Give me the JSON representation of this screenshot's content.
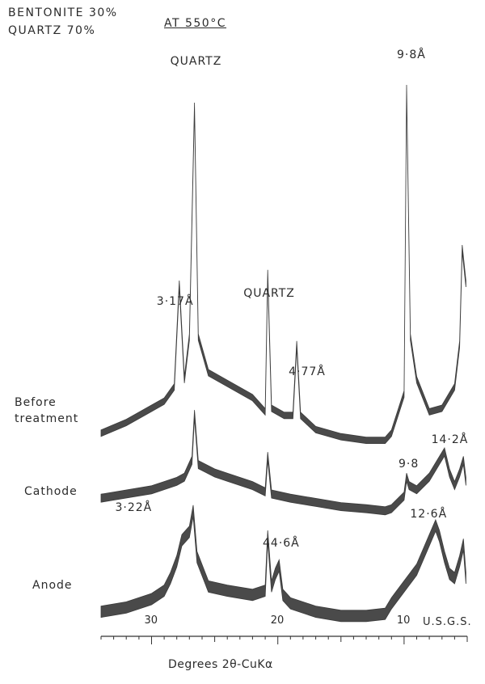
{
  "header": {
    "composition_line1": "BENTONITE 30%",
    "composition_line2": "QUARTZ 70%",
    "condition": "AT 550°C"
  },
  "credit": "U.S.G.S.",
  "chart_data": {
    "type": "line",
    "xlabel": "Degrees 2θ-CuKα",
    "x_ticks": [
      "30",
      "20",
      "10"
    ],
    "xlim": [
      34,
      5
    ],
    "series": [
      {
        "name": "Before treatment",
        "points": [
          [
            34,
            3
          ],
          [
            32,
            6
          ],
          [
            30,
            10
          ],
          [
            29,
            12
          ],
          [
            28.2,
            16
          ],
          [
            27.8,
            45
          ],
          [
            27.4,
            18
          ],
          [
            27,
            30
          ],
          [
            26.6,
            95
          ],
          [
            26.3,
            30
          ],
          [
            25.5,
            20
          ],
          [
            24,
            17
          ],
          [
            22,
            13
          ],
          [
            21,
            9
          ],
          [
            20.8,
            48
          ],
          [
            20.5,
            10
          ],
          [
            19.5,
            8
          ],
          [
            18.8,
            8
          ],
          [
            18.5,
            28
          ],
          [
            18.2,
            8
          ],
          [
            17,
            4
          ],
          [
            15,
            2
          ],
          [
            13,
            1
          ],
          [
            11.5,
            1
          ],
          [
            11,
            3
          ],
          [
            10,
            14
          ],
          [
            9.8,
            100
          ],
          [
            9.5,
            30
          ],
          [
            9,
            18
          ],
          [
            8,
            9
          ],
          [
            7,
            10
          ],
          [
            6,
            16
          ],
          [
            5.6,
            28
          ],
          [
            5.4,
            55
          ],
          [
            5.1,
            45
          ]
        ],
        "peak_labels": [
          {
            "text": "QUARTZ",
            "x": 26.6
          },
          {
            "text": "3·17Å",
            "x": 27.8
          },
          {
            "text": "QUARTZ",
            "x": 20.8
          },
          {
            "text": "4·77Å",
            "x": 18.5
          },
          {
            "text": "9·8Å",
            "x": 9.8
          }
        ]
      },
      {
        "name": "Cathode",
        "points": [
          [
            34,
            8
          ],
          [
            32,
            10
          ],
          [
            30,
            12
          ],
          [
            29,
            14
          ],
          [
            28,
            16
          ],
          [
            27.4,
            18
          ],
          [
            26.8,
            26
          ],
          [
            26.6,
            48
          ],
          [
            26.3,
            24
          ],
          [
            25,
            20
          ],
          [
            24,
            18
          ],
          [
            22,
            14
          ],
          [
            21,
            11
          ],
          [
            20.8,
            28
          ],
          [
            20.5,
            10
          ],
          [
            19,
            8
          ],
          [
            17,
            6
          ],
          [
            15,
            4
          ],
          [
            13,
            3
          ],
          [
            11.5,
            2
          ],
          [
            11,
            3
          ],
          [
            10.5,
            6
          ],
          [
            10,
            9
          ],
          [
            9.8,
            18
          ],
          [
            9.6,
            14
          ],
          [
            9,
            12
          ],
          [
            8,
            18
          ],
          [
            7.2,
            26
          ],
          [
            6.8,
            30
          ],
          [
            6.4,
            20
          ],
          [
            6,
            14
          ],
          [
            5.6,
            20
          ],
          [
            5.3,
            26
          ],
          [
            5.1,
            16
          ]
        ],
        "peak_labels": [
          {
            "text": "9·8",
            "x": 9.8
          },
          {
            "text": "14·2Å",
            "x": 7.2
          }
        ]
      },
      {
        "name": "Anode",
        "points": [
          [
            34,
            4
          ],
          [
            32,
            6
          ],
          [
            30,
            10
          ],
          [
            29,
            14
          ],
          [
            28.5,
            20
          ],
          [
            28,
            28
          ],
          [
            27.6,
            38
          ],
          [
            27,
            42
          ],
          [
            26.7,
            52
          ],
          [
            26.4,
            30
          ],
          [
            25.5,
            16
          ],
          [
            24,
            14
          ],
          [
            22,
            12
          ],
          [
            21,
            14
          ],
          [
            20.8,
            40
          ],
          [
            20.5,
            16
          ],
          [
            20.2,
            22
          ],
          [
            19.9,
            26
          ],
          [
            19.6,
            12
          ],
          [
            19,
            8
          ],
          [
            17,
            4
          ],
          [
            15,
            2
          ],
          [
            13,
            2
          ],
          [
            11.5,
            3
          ],
          [
            11,
            8
          ],
          [
            10,
            16
          ],
          [
            9,
            24
          ],
          [
            8,
            38
          ],
          [
            7.5,
            45
          ],
          [
            7.2,
            40
          ],
          [
            6.8,
            30
          ],
          [
            6.4,
            22
          ],
          [
            6,
            20
          ],
          [
            5.6,
            28
          ],
          [
            5.3,
            36
          ],
          [
            5.1,
            20
          ]
        ],
        "peak_labels": [
          {
            "text": "3·22Å",
            "x": 28.4
          },
          {
            "text": "44·6Å",
            "x": 20.3
          },
          {
            "text": "12·6Å",
            "x": 7.6
          }
        ]
      }
    ]
  }
}
